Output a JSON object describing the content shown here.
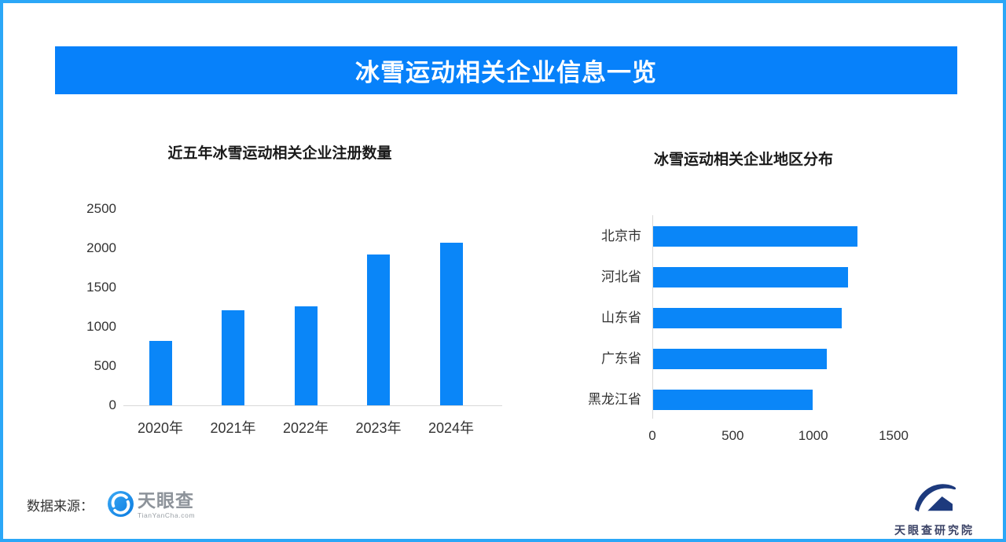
{
  "header": {
    "title": "冰雪运动相关企业信息一览"
  },
  "chart_data": [
    {
      "type": "bar",
      "orientation": "vertical",
      "title": "近五年冰雪运动相关企业注册数量",
      "categories": [
        "2020年",
        "2021年",
        "2022年",
        "2023年",
        "2024年"
      ],
      "values": [
        820,
        1210,
        1260,
        1920,
        2070
      ],
      "xlabel": "",
      "ylabel": "",
      "ylim": [
        0,
        2500
      ],
      "yticks": [
        0,
        500,
        1000,
        1500,
        2000,
        2500
      ],
      "grid": false,
      "legend": false,
      "bar_color": "#0a86f8"
    },
    {
      "type": "bar",
      "orientation": "horizontal",
      "title": "冰雪运动相关企业地区分布",
      "categories": [
        "北京市",
        "河北省",
        "山东省",
        "广东省",
        "黑龙江省"
      ],
      "values": [
        1270,
        1210,
        1175,
        1080,
        990
      ],
      "xlabel": "",
      "ylabel": "",
      "xlim": [
        0,
        1500
      ],
      "xticks": [
        0,
        500,
        1000,
        1500
      ],
      "grid": false,
      "legend": false,
      "bar_color": "#0a86f8"
    }
  ],
  "footer": {
    "source_label": "数据来源：",
    "tianyancha": {
      "name": "天眼查",
      "domain": "TianYanCha.com"
    },
    "research": {
      "name": "天眼查研究院"
    }
  },
  "colors": {
    "banner_blue": "#0781fa",
    "page_border": "#2ba7f7",
    "bar_blue": "#0a86f8",
    "axis_line": "#d9d9d9",
    "tianyancha_icon_blue": "#1492f0",
    "research_navy": "#1d3a7d"
  }
}
